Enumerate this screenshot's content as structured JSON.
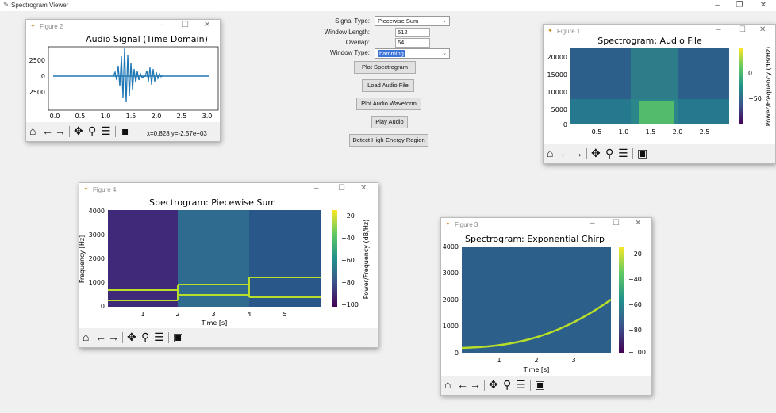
{
  "app": {
    "title": "Spectrogram Viewer",
    "window_controls": [
      "–",
      "❐",
      "✕"
    ]
  },
  "controls": {
    "signal_type": {
      "label": "Signal Type:",
      "value": "Piecewise Sum"
    },
    "window_length": {
      "label": "Window Length:",
      "value": "512"
    },
    "overlap": {
      "label": "Overlap:",
      "value": "64"
    },
    "window_type": {
      "label": "Window Type:",
      "value": "hamming"
    },
    "buttons": [
      "Plot Spectrogram",
      "Load Audio File",
      "Plot Audio Waveform",
      "Play Audio",
      "Detect High-Energy Region"
    ]
  },
  "toolbar_icons": [
    "home-icon",
    "back-icon",
    "forward-icon",
    "pan-icon",
    "zoom-icon",
    "configure-icon",
    "save-icon"
  ],
  "figures": {
    "fig2": {
      "window_title": "Figure 2",
      "coords": "x=0.828 y=-2.57e+03",
      "chart_data": {
        "type": "line",
        "title": "Audio Signal (Time Domain)",
        "xlim": [
          0,
          3.0
        ],
        "xticks": [
          "0.0",
          "0.5",
          "1.0",
          "1.5",
          "2.0",
          "2.5",
          "3.0"
        ],
        "yticks": [
          "2500",
          "0",
          "2500"
        ],
        "color": "#1f77b4"
      }
    },
    "fig1": {
      "window_title": "Figure 1",
      "chart_data": {
        "type": "heatmap",
        "title": "Spectrogram: Audio File",
        "xticks": [
          "0.5",
          "1.0",
          "1.5",
          "2.0",
          "2.5"
        ],
        "yticks": [
          "20000",
          "15000",
          "10000",
          "5000",
          "0"
        ],
        "colorbar_label": "Power/Frequency (dB/Hz)",
        "colorbar_ticks": [
          "0",
          "−50"
        ]
      }
    },
    "fig4": {
      "window_title": "Figure 4",
      "chart_data": {
        "type": "heatmap",
        "title": "Spectrogram: Piecewise Sum",
        "xlabel": "Time [s]",
        "ylabel": "Frequency [Hz]",
        "xticks": [
          "1",
          "2",
          "3",
          "4",
          "5"
        ],
        "yticks": [
          "4000",
          "3000",
          "2000",
          "1000",
          "0"
        ],
        "colorbar_label": "Power/Frequency (dB/Hz)",
        "colorbar_ticks": [
          "−20",
          "−40",
          "−60",
          "−80",
          "−100"
        ],
        "segments": [
          {
            "t": [
              0,
              2
            ],
            "freqs": [
              300,
              700
            ]
          },
          {
            "t": [
              2,
              4
            ],
            "freqs": [
              500,
              900
            ]
          },
          {
            "t": [
              4,
              6
            ],
            "freqs": [
              400,
              1200
            ]
          }
        ]
      }
    },
    "fig3": {
      "window_title": "Figure 3",
      "chart_data": {
        "type": "heatmap",
        "title": "Spectrogram: Exponential Chirp",
        "xlabel": "Time [s]",
        "xticks": [
          "1",
          "2",
          "3"
        ],
        "yticks": [
          "4000",
          "3000",
          "2000",
          "1000",
          "0"
        ],
        "colorbar_ticks": [
          "−20",
          "−40",
          "−60",
          "−80",
          "−100"
        ]
      }
    }
  }
}
